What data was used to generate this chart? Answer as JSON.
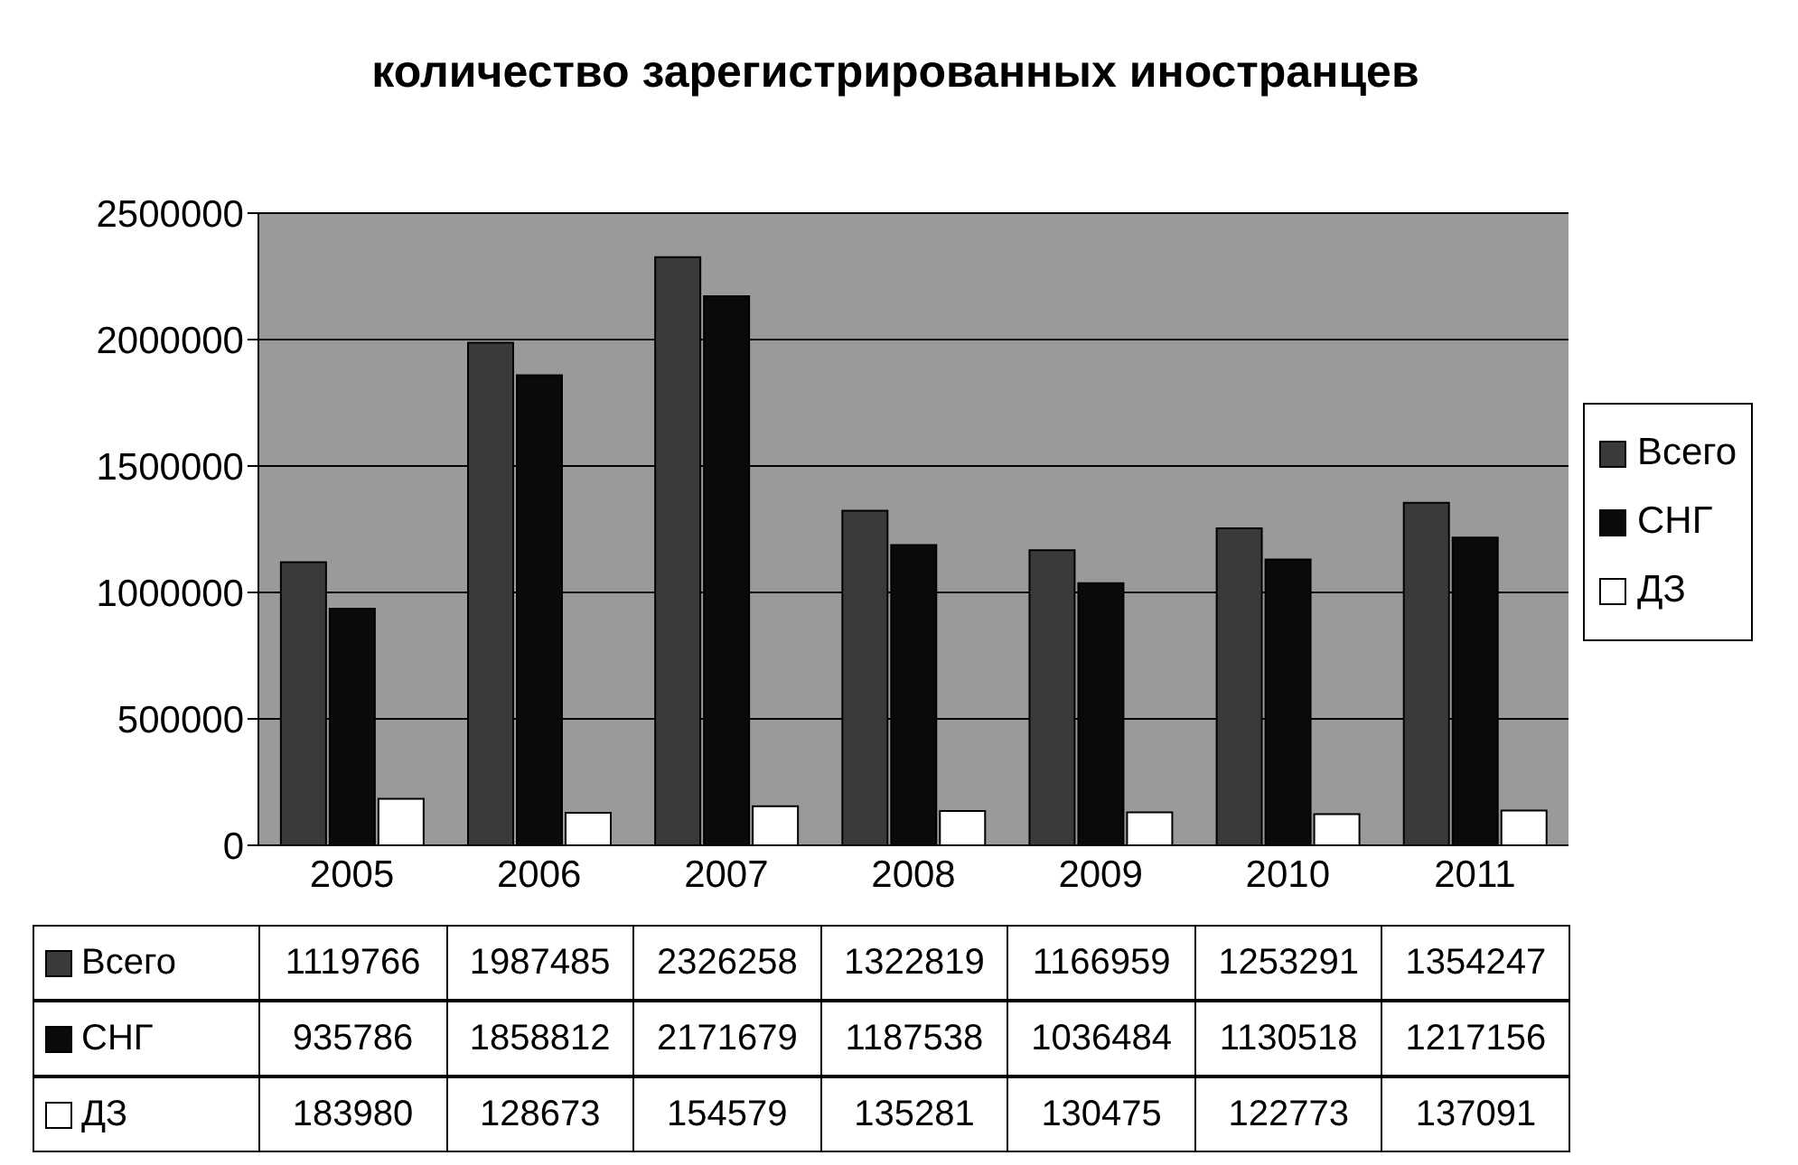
{
  "chart_data": {
    "type": "bar",
    "title": "количество зарегистрированных иностранцев",
    "categories": [
      "2005",
      "2006",
      "2007",
      "2008",
      "2009",
      "2010",
      "2011"
    ],
    "series": [
      {
        "name": "Всего",
        "color": "#3a3a3a",
        "values": [
          1119766,
          1987485,
          2326258,
          1322819,
          1166959,
          1253291,
          1354247
        ]
      },
      {
        "name": "СНГ",
        "color": "#0a0a0a",
        "values": [
          935786,
          1858812,
          2171679,
          1187538,
          1036484,
          1130518,
          1217156
        ]
      },
      {
        "name": "ДЗ",
        "color": "#ffffff",
        "values": [
          183980,
          128673,
          154579,
          135281,
          130475,
          122773,
          137091
        ]
      }
    ],
    "ylim": [
      0,
      2500000
    ],
    "yticks": [
      0,
      500000,
      1000000,
      1500000,
      2000000,
      2500000
    ],
    "grid": "y",
    "legend": "right",
    "data_labels": true
  }
}
